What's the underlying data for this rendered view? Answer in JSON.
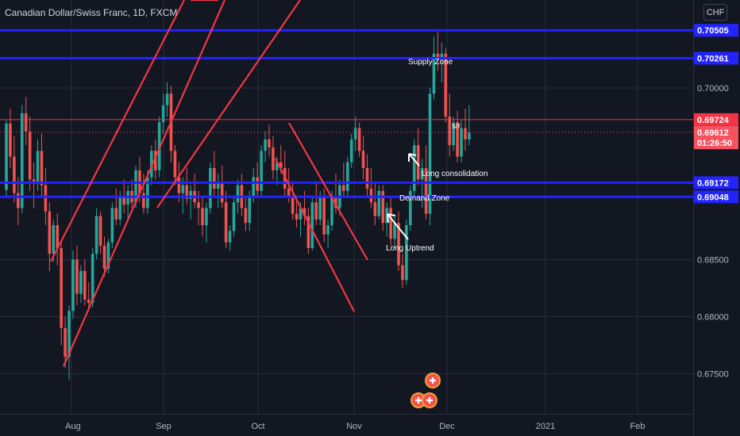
{
  "header": {
    "title": "Canadian Dollar/Swiss Franc, 1D, FXCM",
    "currency_button": "CHF"
  },
  "colors": {
    "background": "#131722",
    "bull": "#26a69a",
    "bear": "#ef5350",
    "level_line": "#2323ff",
    "trend_line": "#f23645",
    "axis_text": "#b2b5be",
    "grid": "#2a2e39"
  },
  "chart_data": {
    "type": "candlestick",
    "symbol": "CADCHF",
    "timeframe": "1D",
    "x_ticks": [
      "Aug",
      "Sep",
      "Oct",
      "Nov",
      "Dec",
      "2021",
      "Feb"
    ],
    "y_ticks": [
      0.675,
      0.68,
      0.685,
      0.7
    ],
    "y_tick_labels": [
      "0.67500",
      "0.68000",
      "0.68500",
      "0.70000"
    ],
    "ylim": [
      0.6715,
      0.7077
    ],
    "grid": true,
    "price_labels": [
      {
        "label": "0.70505",
        "value": 0.70505,
        "color": "#2323ff",
        "text_color": "#ffffff"
      },
      {
        "label": "0.70261",
        "value": 0.70261,
        "color": "#2323ff",
        "text_color": "#ffffff"
      },
      {
        "label": "0.69724",
        "value": 0.69724,
        "color": "#f23645",
        "text_color": "#ffffff"
      },
      {
        "label": "0.69612",
        "value": 0.69612,
        "color": "#f7525f",
        "text_color": "#ffffff"
      },
      {
        "label": "01:26:50",
        "value": 0.6952,
        "color": "#f7525f",
        "text_color": "#ffffff"
      },
      {
        "label": "0.69172",
        "value": 0.69172,
        "color": "#2323ff",
        "text_color": "#ffffff"
      },
      {
        "label": "0.69048",
        "value": 0.69048,
        "color": "#2323ff",
        "text_color": "#ffffff"
      }
    ],
    "horizontal_levels": [
      {
        "value": 0.70505,
        "color": "#2323ff",
        "width": 3
      },
      {
        "value": 0.70261,
        "color": "#2323ff",
        "width": 3
      },
      {
        "value": 0.69724,
        "color": "#f23645",
        "width": 1
      },
      {
        "value": 0.69172,
        "color": "#2323ff",
        "width": 3
      },
      {
        "value": 0.69048,
        "color": "#2323ff",
        "width": 3
      }
    ],
    "current_price": 0.69612,
    "annotations": [
      "Supply Zone",
      "s/r",
      "Long consolidation",
      "Demand Zone",
      "Long Uptrend"
    ],
    "candles": [
      [
        0.6911,
        0.6972,
        0.6905,
        0.6969
      ],
      [
        0.6969,
        0.6982,
        0.693,
        0.694
      ],
      [
        0.694,
        0.6958,
        0.69,
        0.6908
      ],
      [
        0.6908,
        0.6922,
        0.688,
        0.6895
      ],
      [
        0.6895,
        0.6985,
        0.689,
        0.6978
      ],
      [
        0.6978,
        0.6992,
        0.695,
        0.6962
      ],
      [
        0.6962,
        0.6975,
        0.691,
        0.692
      ],
      [
        0.692,
        0.6935,
        0.6895,
        0.6918
      ],
      [
        0.6918,
        0.6955,
        0.691,
        0.6945
      ],
      [
        0.6945,
        0.696,
        0.6905,
        0.6915
      ],
      [
        0.6915,
        0.693,
        0.688,
        0.6892
      ],
      [
        0.6892,
        0.69,
        0.684,
        0.6855
      ],
      [
        0.6855,
        0.6885,
        0.6848,
        0.688
      ],
      [
        0.688,
        0.689,
        0.6845,
        0.686
      ],
      [
        0.686,
        0.6865,
        0.6775,
        0.679
      ],
      [
        0.679,
        0.68,
        0.6755,
        0.6765
      ],
      [
        0.6765,
        0.681,
        0.6745,
        0.6805
      ],
      [
        0.6805,
        0.6858,
        0.6798,
        0.685
      ],
      [
        0.685,
        0.6862,
        0.681,
        0.682
      ],
      [
        0.682,
        0.6845,
        0.6812,
        0.684
      ],
      [
        0.684,
        0.685,
        0.681,
        0.6815
      ],
      [
        0.6815,
        0.683,
        0.6805,
        0.6812
      ],
      [
        0.6812,
        0.686,
        0.6808,
        0.6855
      ],
      [
        0.6855,
        0.6895,
        0.685,
        0.6888
      ],
      [
        0.6888,
        0.6892,
        0.6855,
        0.6862
      ],
      [
        0.6862,
        0.687,
        0.6835,
        0.6842
      ],
      [
        0.6842,
        0.6868,
        0.6838,
        0.6865
      ],
      [
        0.6865,
        0.69,
        0.686,
        0.6895
      ],
      [
        0.6895,
        0.6912,
        0.688,
        0.6885
      ],
      [
        0.6885,
        0.691,
        0.688,
        0.6905
      ],
      [
        0.6905,
        0.692,
        0.689,
        0.6898
      ],
      [
        0.6898,
        0.6915,
        0.6885,
        0.691
      ],
      [
        0.691,
        0.692,
        0.6895,
        0.69
      ],
      [
        0.69,
        0.6932,
        0.6895,
        0.6928
      ],
      [
        0.6928,
        0.694,
        0.69,
        0.6908
      ],
      [
        0.6908,
        0.6925,
        0.689,
        0.6895
      ],
      [
        0.6895,
        0.6928,
        0.689,
        0.6922
      ],
      [
        0.6922,
        0.695,
        0.6915,
        0.6945
      ],
      [
        0.6945,
        0.6955,
        0.692,
        0.6928
      ],
      [
        0.6928,
        0.6975,
        0.6922,
        0.697
      ],
      [
        0.697,
        0.6995,
        0.696,
        0.6985
      ],
      [
        0.6985,
        0.7005,
        0.6975,
        0.6995
      ],
      [
        0.6995,
        0.7002,
        0.6935,
        0.6945
      ],
      [
        0.6945,
        0.695,
        0.6915,
        0.6922
      ],
      [
        0.6922,
        0.6935,
        0.69,
        0.6908
      ],
      [
        0.6908,
        0.6922,
        0.689,
        0.6915
      ],
      [
        0.6915,
        0.693,
        0.6898,
        0.6903
      ],
      [
        0.6903,
        0.6915,
        0.6885,
        0.691
      ],
      [
        0.691,
        0.6925,
        0.6895,
        0.69
      ],
      [
        0.69,
        0.691,
        0.688,
        0.6895
      ],
      [
        0.6895,
        0.6905,
        0.687,
        0.688
      ],
      [
        0.688,
        0.69,
        0.6865,
        0.6895
      ],
      [
        0.6895,
        0.6935,
        0.689,
        0.693
      ],
      [
        0.693,
        0.6945,
        0.6905,
        0.6912
      ],
      [
        0.6912,
        0.6925,
        0.6895,
        0.6918
      ],
      [
        0.6918,
        0.6932,
        0.6895,
        0.69
      ],
      [
        0.69,
        0.691,
        0.686,
        0.6865
      ],
      [
        0.6865,
        0.688,
        0.6858,
        0.6875
      ],
      [
        0.6875,
        0.6905,
        0.687,
        0.69
      ],
      [
        0.69,
        0.692,
        0.689,
        0.6915
      ],
      [
        0.6915,
        0.6925,
        0.6888,
        0.6895
      ],
      [
        0.6895,
        0.6905,
        0.6875,
        0.6882
      ],
      [
        0.6882,
        0.691,
        0.6875,
        0.6905
      ],
      [
        0.6905,
        0.693,
        0.69,
        0.6922
      ],
      [
        0.6922,
        0.6935,
        0.6905,
        0.691
      ],
      [
        0.691,
        0.695,
        0.6905,
        0.6945
      ],
      [
        0.6945,
        0.6962,
        0.6935,
        0.6955
      ],
      [
        0.6955,
        0.6968,
        0.694,
        0.6948
      ],
      [
        0.6948,
        0.6958,
        0.692,
        0.6928
      ],
      [
        0.6928,
        0.694,
        0.6915,
        0.6935
      ],
      [
        0.6935,
        0.695,
        0.6925,
        0.693
      ],
      [
        0.693,
        0.6945,
        0.6905,
        0.6912
      ],
      [
        0.6912,
        0.693,
        0.69,
        0.6905
      ],
      [
        0.6905,
        0.6918,
        0.6885,
        0.689
      ],
      [
        0.689,
        0.6902,
        0.6878,
        0.6885
      ],
      [
        0.6885,
        0.69,
        0.687,
        0.6895
      ],
      [
        0.6895,
        0.691,
        0.688,
        0.6888
      ],
      [
        0.6888,
        0.6895,
        0.6855,
        0.686
      ],
      [
        0.686,
        0.6905,
        0.6858,
        0.69
      ],
      [
        0.69,
        0.6918,
        0.688,
        0.6885
      ],
      [
        0.6885,
        0.691,
        0.688,
        0.6905
      ],
      [
        0.6905,
        0.6912,
        0.6865,
        0.6872
      ],
      [
        0.6872,
        0.6885,
        0.686,
        0.688
      ],
      [
        0.688,
        0.691,
        0.6875,
        0.6905
      ],
      [
        0.6905,
        0.6925,
        0.689,
        0.6895
      ],
      [
        0.6895,
        0.692,
        0.6888,
        0.6915
      ],
      [
        0.6915,
        0.6935,
        0.6905,
        0.691
      ],
      [
        0.691,
        0.694,
        0.6905,
        0.6935
      ],
      [
        0.6935,
        0.696,
        0.693,
        0.6955
      ],
      [
        0.6955,
        0.6975,
        0.6945,
        0.6965
      ],
      [
        0.6965,
        0.697,
        0.694,
        0.6945
      ],
      [
        0.6945,
        0.6958,
        0.692,
        0.693
      ],
      [
        0.693,
        0.6942,
        0.6905,
        0.6912
      ],
      [
        0.6912,
        0.693,
        0.6895,
        0.69
      ],
      [
        0.69,
        0.6918,
        0.688,
        0.6888
      ],
      [
        0.6888,
        0.6915,
        0.6885,
        0.691
      ],
      [
        0.691,
        0.6915,
        0.6875,
        0.6882
      ],
      [
        0.6882,
        0.69,
        0.687,
        0.6895
      ],
      [
        0.6895,
        0.6905,
        0.6862,
        0.6868
      ],
      [
        0.6868,
        0.6888,
        0.686,
        0.6882
      ],
      [
        0.6882,
        0.6892,
        0.684,
        0.6845
      ],
      [
        0.6845,
        0.6855,
        0.6825,
        0.6832
      ],
      [
        0.6832,
        0.6885,
        0.6828,
        0.688
      ],
      [
        0.688,
        0.6915,
        0.6875,
        0.691
      ],
      [
        0.691,
        0.6955,
        0.6905,
        0.695
      ],
      [
        0.695,
        0.6965,
        0.6915,
        0.692
      ],
      [
        0.692,
        0.6938,
        0.6895,
        0.693
      ],
      [
        0.693,
        0.695,
        0.6885,
        0.689
      ],
      [
        0.689,
        0.7,
        0.688,
        0.6995
      ],
      [
        0.6995,
        0.7045,
        0.699,
        0.703
      ],
      [
        0.703,
        0.705,
        0.7015,
        0.7025
      ],
      [
        0.7025,
        0.704,
        0.7005,
        0.703
      ],
      [
        0.703,
        0.7035,
        0.697,
        0.6975
      ],
      [
        0.6975,
        0.6995,
        0.694,
        0.695
      ],
      [
        0.695,
        0.6975,
        0.6945,
        0.697
      ],
      [
        0.697,
        0.698,
        0.6935,
        0.694
      ],
      [
        0.694,
        0.6972,
        0.6935,
        0.6965
      ],
      [
        0.6965,
        0.6982,
        0.6945,
        0.6955
      ],
      [
        0.6955,
        0.6985,
        0.695,
        0.6961
      ]
    ]
  }
}
